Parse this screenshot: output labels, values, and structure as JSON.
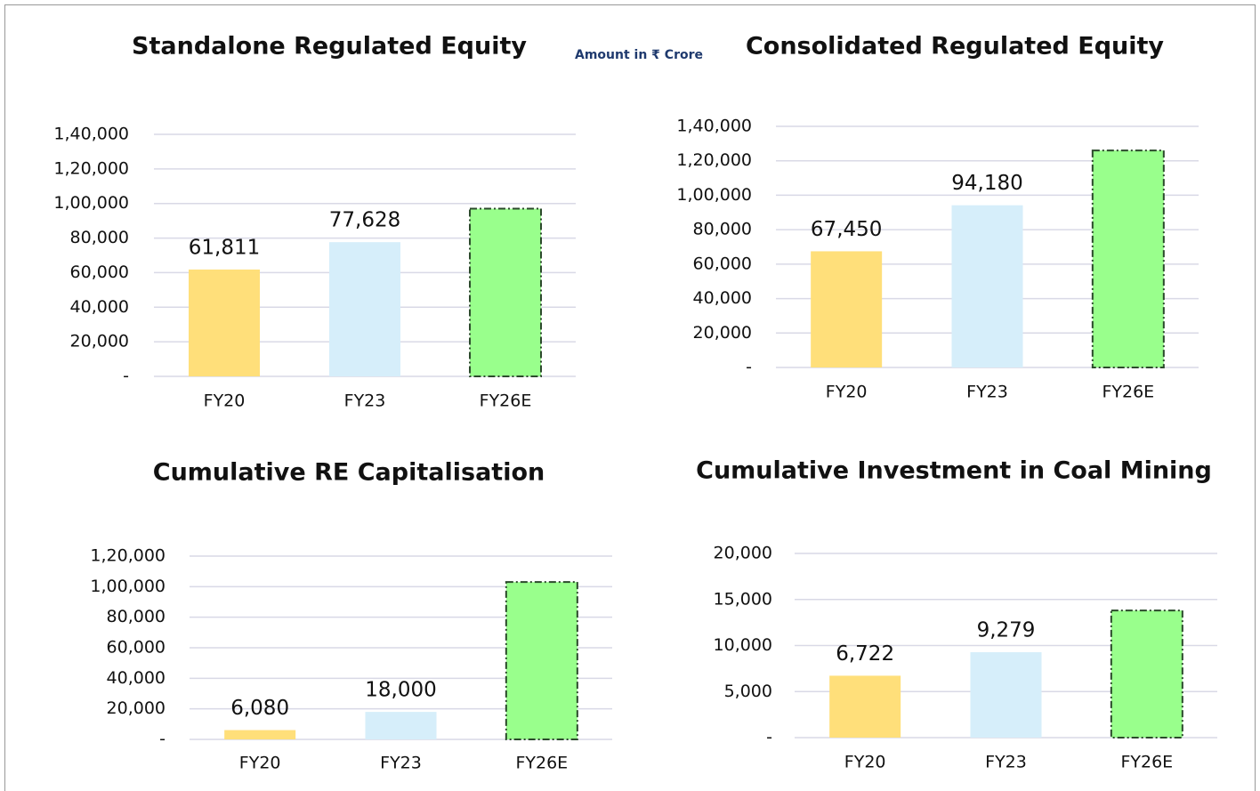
{
  "chart_data": [
    {
      "type": "bar",
      "title": "Standalone Regulated Equity",
      "subtitle": "Amount in ₹ Crore",
      "categories": [
        "FY20",
        "FY23",
        "FY26E"
      ],
      "values": [
        61811,
        77628,
        97000
      ],
      "value_labels": [
        "61,811",
        "77,628",
        null
      ],
      "colors": [
        "#ffdf7a",
        "#d6eefa",
        "#99ff8c"
      ],
      "dashed": [
        false,
        false,
        true
      ],
      "ylim": [
        0,
        140000
      ],
      "yticks": [
        {
          "value": 0,
          "label": "-"
        },
        {
          "value": 20000,
          "label": "20,000"
        },
        {
          "value": 40000,
          "label": "40,000"
        },
        {
          "value": 60000,
          "label": "60,000"
        },
        {
          "value": 80000,
          "label": "80,000"
        },
        {
          "value": 100000,
          "label": "1,00,000"
        },
        {
          "value": 120000,
          "label": "1,20,000"
        },
        {
          "value": 140000,
          "label": "1,40,000"
        }
      ],
      "grid": true
    },
    {
      "type": "bar",
      "title": "Consolidated Regulated Equity",
      "categories": [
        "FY20",
        "FY23",
        "FY26E"
      ],
      "values": [
        67450,
        94180,
        126000
      ],
      "value_labels": [
        "67,450",
        "94,180",
        null
      ],
      "colors": [
        "#ffdf7a",
        "#d6eefa",
        "#99ff8c"
      ],
      "dashed": [
        false,
        false,
        true
      ],
      "ylim": [
        0,
        140000
      ],
      "yticks": [
        {
          "value": 0,
          "label": "-"
        },
        {
          "value": 20000,
          "label": "20,000"
        },
        {
          "value": 40000,
          "label": "40,000"
        },
        {
          "value": 60000,
          "label": "60,000"
        },
        {
          "value": 80000,
          "label": "80,000"
        },
        {
          "value": 100000,
          "label": "1,00,000"
        },
        {
          "value": 120000,
          "label": "1,20,000"
        },
        {
          "value": 140000,
          "label": "1,40,000"
        }
      ],
      "grid": true
    },
    {
      "type": "bar",
      "title": "Cumulative RE Capitalisation",
      "categories": [
        "FY20",
        "FY23",
        "FY26E"
      ],
      "values": [
        6080,
        18000,
        103000
      ],
      "value_labels": [
        "6,080",
        "18,000",
        null
      ],
      "colors": [
        "#ffdf7a",
        "#d6eefa",
        "#99ff8c"
      ],
      "dashed": [
        false,
        false,
        true
      ],
      "ylim": [
        0,
        120000
      ],
      "yticks": [
        {
          "value": 0,
          "label": "-"
        },
        {
          "value": 20000,
          "label": "20,000"
        },
        {
          "value": 40000,
          "label": "40,000"
        },
        {
          "value": 60000,
          "label": "60,000"
        },
        {
          "value": 80000,
          "label": "80,000"
        },
        {
          "value": 100000,
          "label": "1,00,000"
        },
        {
          "value": 120000,
          "label": "1,20,000"
        }
      ],
      "grid": true
    },
    {
      "type": "bar",
      "title": "Cumulative Investment in Coal Mining",
      "categories": [
        "FY20",
        "FY23",
        "FY26E"
      ],
      "values": [
        6722,
        9279,
        13800
      ],
      "value_labels": [
        "6,722",
        "9,279",
        null
      ],
      "colors": [
        "#ffdf7a",
        "#d6eefa",
        "#99ff8c"
      ],
      "dashed": [
        false,
        false,
        true
      ],
      "ylim": [
        0,
        20000
      ],
      "yticks": [
        {
          "value": 0,
          "label": "-"
        },
        {
          "value": 5000,
          "label": "5,000"
        },
        {
          "value": 10000,
          "label": "10,000"
        },
        {
          "value": 15000,
          "label": "15,000"
        },
        {
          "value": 20000,
          "label": "20,000"
        }
      ],
      "grid": true
    }
  ]
}
